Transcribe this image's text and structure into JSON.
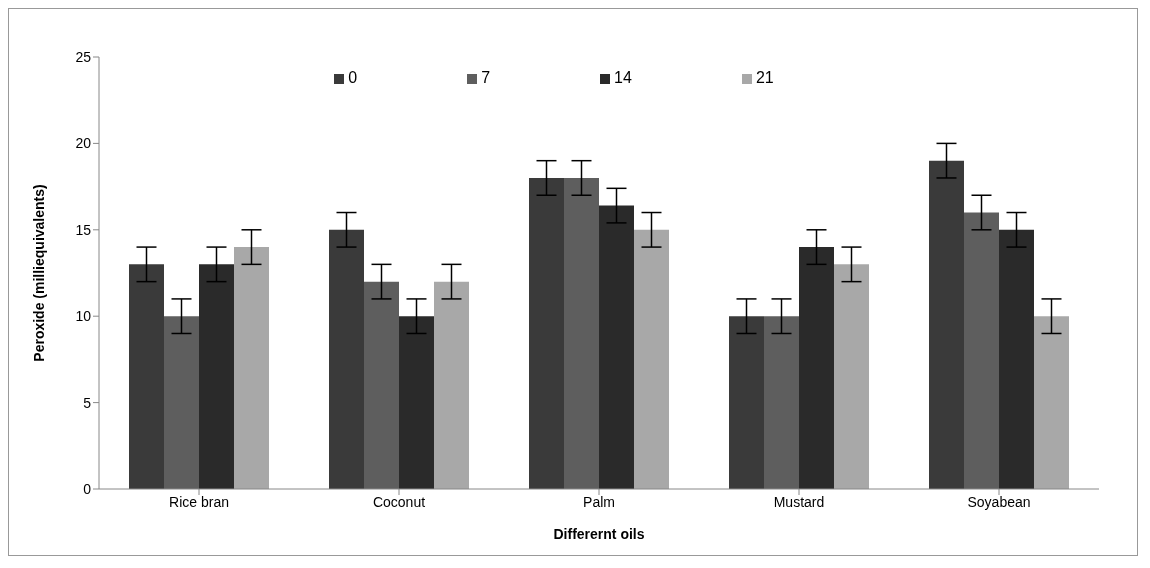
{
  "chart_data": {
    "type": "bar",
    "xlabel": "Differernt oils",
    "ylabel": "Peroxide (milliequivalents)",
    "categories": [
      "Rice bran",
      "Coconut",
      "Palm",
      "Mustard",
      "Soyabean"
    ],
    "series": [
      {
        "name": "0",
        "color": "#3a3a3a",
        "values": [
          13,
          15,
          18,
          10,
          19
        ],
        "errors": [
          1,
          1,
          1,
          1,
          1
        ]
      },
      {
        "name": "7",
        "color": "#5e5e5e",
        "values": [
          10,
          12,
          18,
          10,
          16
        ],
        "errors": [
          1,
          1,
          1,
          1,
          1
        ]
      },
      {
        "name": "14",
        "color": "#2a2a2a",
        "values": [
          13,
          10,
          16.4,
          14,
          15
        ],
        "errors": [
          1,
          1,
          1,
          1,
          1
        ]
      },
      {
        "name": "21",
        "color": "#a8a8a8",
        "values": [
          14,
          12,
          15,
          13,
          10
        ],
        "errors": [
          1,
          1,
          1,
          1,
          1
        ]
      }
    ],
    "ylim": [
      0,
      25
    ],
    "yticks": [
      0,
      5,
      10,
      15,
      20,
      25
    ],
    "legend": "top"
  }
}
